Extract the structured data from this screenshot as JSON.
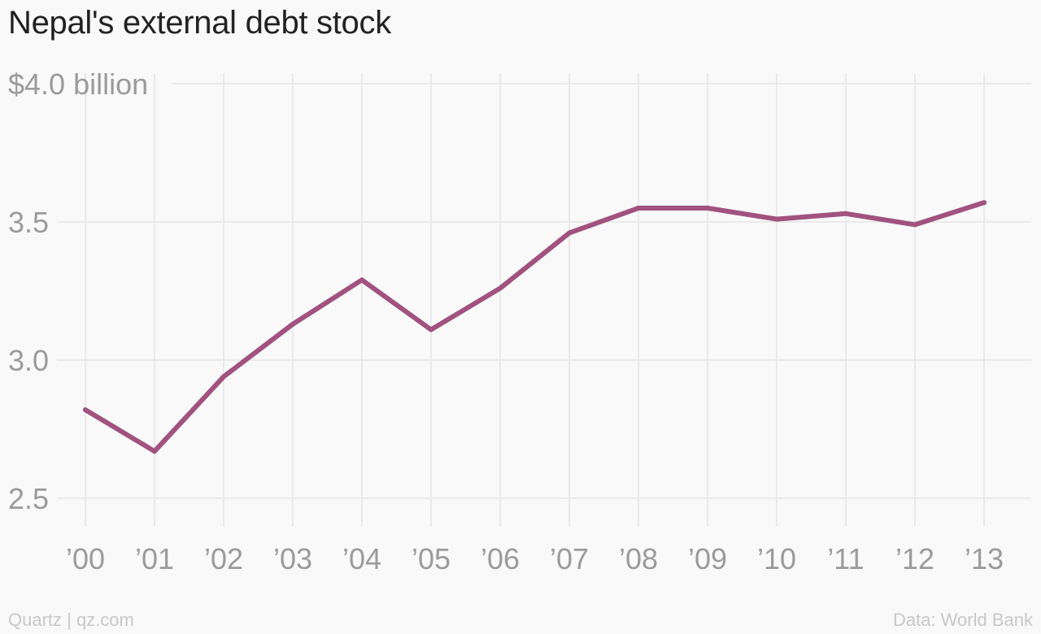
{
  "title": "Nepal's external debt stock",
  "footer": {
    "left": "Quartz | qz.com",
    "right": "Data: World Bank"
  },
  "colors": {
    "line": "#a1527f",
    "grid": "#e6e6e6",
    "tick_text": "#9b9b9b",
    "background": "#f9f9f9"
  },
  "chart_data": {
    "type": "line",
    "x": [
      "’00",
      "’01",
      "’02",
      "’03",
      "’04",
      "’05",
      "’06",
      "’07",
      "’08",
      "’09",
      "’10",
      "’11",
      "’12",
      "’13"
    ],
    "series": [
      {
        "values": [
          2.82,
          2.67,
          2.94,
          3.13,
          3.29,
          3.11,
          3.26,
          3.46,
          3.55,
          3.55,
          3.51,
          3.53,
          3.49,
          3.57
        ]
      }
    ],
    "y_ticks": [
      {
        "value": 2.5,
        "label": "2.5"
      },
      {
        "value": 3.0,
        "label": "3.0"
      },
      {
        "value": 3.5,
        "label": "3.5"
      },
      {
        "value": 4.0,
        "label": "$4.0 billion"
      }
    ],
    "ylim": [
      2.5,
      4.0
    ],
    "grid": true,
    "legend": "none"
  }
}
